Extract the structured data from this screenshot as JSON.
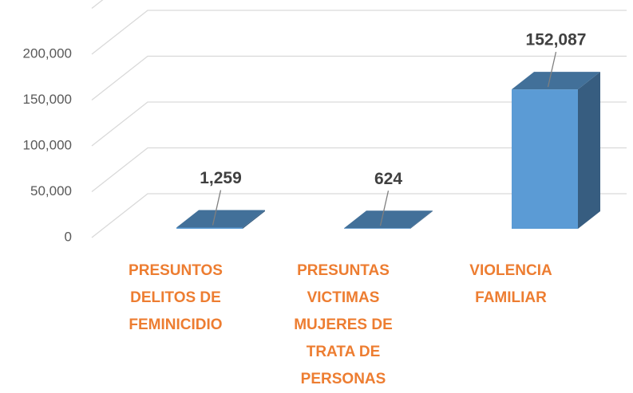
{
  "chart_data": {
    "type": "bar3d",
    "categories": [
      "PRESUNTOS DELITOS DE FEMINICIDIO",
      "PRESUNTAS VICTIMAS MUJERES DE TRATA DE PERSONAS",
      "VIOLENCIA FAMILIAR"
    ],
    "values": [
      1259,
      624,
      152087
    ],
    "value_labels": [
      "1,259",
      "624",
      "152,087"
    ],
    "color": "#5B9BD5",
    "ylim": [
      0,
      250000
    ],
    "yticks": [
      0,
      {
        "value": 50000,
        "label": "50,000"
      },
      {
        "value": 100000,
        "label": "100,000"
      },
      {
        "value": 150000,
        "label": "150,000"
      },
      {
        "value": 200000,
        "label": "200,000"
      }
    ],
    "grid": true
  }
}
